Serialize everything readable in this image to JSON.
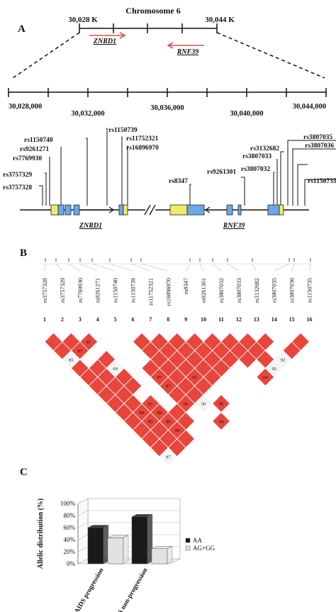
{
  "panels": {
    "a": "A",
    "b": "B",
    "c": "C"
  },
  "chromosome": {
    "title": "Chromosome 6",
    "left_label": "30,028 K",
    "right_label": "30,044 K",
    "gene1": "ZNRD1",
    "gene2": "RNF39"
  },
  "scale": {
    "ticks": [
      "30,028,000",
      "30,032,000",
      "30,036,000",
      "30,040,000",
      "30,044,000"
    ]
  },
  "snps_left": [
    "rs3757328",
    "rs3757329",
    "rs7769930",
    "rs9261271",
    "rs1150740",
    "rs1150739",
    "rs11752321",
    "rs16896970"
  ],
  "snps_right": [
    "rs8347",
    "rs9261301",
    "rs3807032",
    "rs3807033",
    "rs3132682",
    "rs3807035",
    "rs3807036",
    "rs1150735"
  ],
  "genes": {
    "gene1": "ZNRD1",
    "gene2": "RNF39"
  },
  "ld": {
    "snp_labels": [
      "rs3757328",
      "rs3757329",
      "rs7769930",
      "rs9261271",
      "rs1150740",
      "rs1150739",
      "rs11752321",
      "rs16896970",
      "rs8347",
      "rs9261301",
      "rs3807032",
      "rs3807033",
      "rs3132682",
      "rs3807035",
      "rs3807036",
      "rs1150735"
    ],
    "numbers": [
      "1",
      "2",
      "3",
      "4",
      "5",
      "6",
      "7",
      "8",
      "9",
      "10",
      "11",
      "12",
      "13",
      "14",
      "15",
      "16"
    ],
    "colors": {
      "strong": "#e8463c",
      "weak": "#ffffff",
      "mid": "#f4f4f4"
    },
    "cells": [
      {
        "i": 1,
        "j": 2,
        "v": ""
      },
      {
        "i": 2,
        "j": 3,
        "v": ""
      },
      {
        "i": 3,
        "j": 4,
        "v": "87"
      },
      {
        "i": 4,
        "j": 5,
        "v": "weak"
      },
      {
        "i": 5,
        "j": 6,
        "v": "weak"
      },
      {
        "i": 6,
        "j": 7,
        "v": ""
      },
      {
        "i": 7,
        "j": 8,
        "v": ""
      },
      {
        "i": 8,
        "j": 9,
        "v": ""
      },
      {
        "i": 9,
        "j": 10,
        "v": ""
      },
      {
        "i": 10,
        "j": 11,
        "v": ""
      },
      {
        "i": 11,
        "j": 12,
        "v": ""
      },
      {
        "i": 12,
        "j": 13,
        "v": ""
      },
      {
        "i": 13,
        "j": 14,
        "v": ""
      },
      {
        "i": 14,
        "j": 15,
        "v": "weak"
      },
      {
        "i": 15,
        "j": 16,
        "v": ""
      },
      {
        "i": 1,
        "j": 3,
        "v": ""
      },
      {
        "i": 2,
        "j": 4,
        "v": "87"
      },
      {
        "i": 3,
        "j": 5,
        "v": "weak"
      },
      {
        "i": 4,
        "j": 6,
        "v": "weak"
      },
      {
        "i": 5,
        "j": 7,
        "v": "weak"
      },
      {
        "i": 6,
        "j": 8,
        "v": ""
      },
      {
        "i": 7,
        "j": 9,
        "v": ""
      },
      {
        "i": 8,
        "j": 10,
        "v": ""
      },
      {
        "i": 9,
        "j": 11,
        "v": ""
      },
      {
        "i": 10,
        "j": 12,
        "v": ""
      },
      {
        "i": 11,
        "j": 13,
        "v": ""
      },
      {
        "i": 12,
        "j": 14,
        "v": ""
      },
      {
        "i": 13,
        "j": 15,
        "v": "weak"
      },
      {
        "i": 14,
        "j": 16,
        "v": ""
      },
      {
        "i": 1,
        "j": 4,
        "v": "85w"
      },
      {
        "i": 2,
        "j": 5,
        "v": "weak"
      },
      {
        "i": 3,
        "j": 6,
        "v": ""
      },
      {
        "i": 4,
        "j": 7,
        "v": "weak"
      },
      {
        "i": 5,
        "j": 8,
        "v": "weak"
      },
      {
        "i": 6,
        "j": 9,
        "v": ""
      },
      {
        "i": 7,
        "j": 10,
        "v": ""
      },
      {
        "i": 8,
        "j": 11,
        "v": ""
      },
      {
        "i": 9,
        "j": 12,
        "v": ""
      },
      {
        "i": 10,
        "j": 13,
        "v": ""
      },
      {
        "i": 11,
        "j": 14,
        "v": ""
      },
      {
        "i": 12,
        "j": 15,
        "v": ""
      },
      {
        "i": 13,
        "j": 16,
        "v": "92w"
      },
      {
        "i": 1,
        "j": 5,
        "v": ""
      },
      {
        "i": 2,
        "j": 6,
        "v": ""
      },
      {
        "i": 3,
        "j": 7,
        "v": "69w"
      },
      {
        "i": 4,
        "j": 8,
        "v": "weak"
      },
      {
        "i": 5,
        "j": 9,
        "v": ""
      },
      {
        "i": 6,
        "j": 10,
        "v": ""
      },
      {
        "i": 7,
        "j": 11,
        "v": ""
      },
      {
        "i": 8,
        "j": 12,
        "v": ""
      },
      {
        "i": 9,
        "j": 13,
        "v": ""
      },
      {
        "i": 10,
        "j": 14,
        "v": "weak"
      },
      {
        "i": 11,
        "j": 15,
        "v": "weak"
      },
      {
        "i": 12,
        "j": 16,
        "v": "92w"
      },
      {
        "i": 1,
        "j": 6,
        "v": ""
      },
      {
        "i": 2,
        "j": 7,
        "v": ""
      },
      {
        "i": 3,
        "j": 8,
        "v": ""
      },
      {
        "i": 4,
        "j": 9,
        "v": "weak"
      },
      {
        "i": 5,
        "j": 10,
        "v": "87"
      },
      {
        "i": 6,
        "j": 11,
        "v": ""
      },
      {
        "i": 7,
        "j": 12,
        "v": "91"
      },
      {
        "i": 8,
        "j": 13,
        "v": ""
      },
      {
        "i": 9,
        "j": 14,
        "v": "weak"
      },
      {
        "i": 10,
        "j": 15,
        "v": "weak"
      },
      {
        "i": 11,
        "j": 16,
        "v": "64"
      },
      {
        "i": 1,
        "j": 7,
        "v": ""
      },
      {
        "i": 2,
        "j": 8,
        "v": ""
      },
      {
        "i": 3,
        "j": 9,
        "v": ""
      },
      {
        "i": 4,
        "j": 10,
        "v": "weak"
      },
      {
        "i": 5,
        "j": 11,
        "v": "87"
      },
      {
        "i": 6,
        "j": 12,
        "v": ""
      },
      {
        "i": 7,
        "j": 13,
        "v": ""
      },
      {
        "i": 8,
        "j": 14,
        "v": "weak"
      },
      {
        "i": 9,
        "j": 15,
        "v": "weak"
      },
      {
        "i": 10,
        "j": 16,
        "v": "weak"
      },
      {
        "i": 1,
        "j": 8,
        "v": ""
      },
      {
        "i": 2,
        "j": 9,
        "v": ""
      },
      {
        "i": 3,
        "j": 10,
        "v": "weak"
      },
      {
        "i": 4,
        "j": 11,
        "v": "weak"
      },
      {
        "i": 5,
        "j": 12,
        "v": ""
      },
      {
        "i": 6,
        "j": 13,
        "v": ""
      },
      {
        "i": 7,
        "j": 14,
        "v": "weak"
      },
      {
        "i": 8,
        "j": 15,
        "v": "weak"
      },
      {
        "i": 9,
        "j": 16,
        "v": "weak"
      },
      {
        "i": 1,
        "j": 9,
        "v": ""
      },
      {
        "i": 2,
        "j": 10,
        "v": ""
      },
      {
        "i": 3,
        "j": 11,
        "v": "81"
      },
      {
        "i": 4,
        "j": 12,
        "v": "weak"
      },
      {
        "i": 5,
        "j": 13,
        "v": "96"
      },
      {
        "i": 6,
        "j": 14,
        "v": "50w"
      },
      {
        "i": 7,
        "j": 15,
        "v": "90"
      },
      {
        "i": 8,
        "j": 16,
        "v": "weak"
      },
      {
        "i": 1,
        "j": 10,
        "v": ""
      },
      {
        "i": 2,
        "j": 11,
        "v": "89"
      },
      {
        "i": 3,
        "j": 12,
        "v": "89"
      },
      {
        "i": 4,
        "j": 13,
        "v": ""
      },
      {
        "i": 5,
        "j": 14,
        "v": "weak"
      },
      {
        "i": 6,
        "j": 15,
        "v": "weak"
      },
      {
        "i": 7,
        "j": 16,
        "v": "weak"
      },
      {
        "i": 1,
        "j": 11,
        "v": ""
      },
      {
        "i": 2,
        "j": 12,
        "v": "85"
      },
      {
        "i": 3,
        "j": 13,
        "v": "89"
      },
      {
        "i": 4,
        "j": 14,
        "v": ""
      },
      {
        "i": 5,
        "j": 15,
        "v": "weak"
      },
      {
        "i": 6,
        "j": 16,
        "v": "94"
      },
      {
        "i": 1,
        "j": 12,
        "v": ""
      },
      {
        "i": 2,
        "j": 13,
        "v": ""
      },
      {
        "i": 3,
        "j": 14,
        "v": "99"
      },
      {
        "i": 4,
        "j": 15,
        "v": "weak"
      },
      {
        "i": 5,
        "j": 16,
        "v": "weak"
      },
      {
        "i": 1,
        "j": 13,
        "v": ""
      },
      {
        "i": 2,
        "j": 14,
        "v": ""
      },
      {
        "i": 3,
        "j": 15,
        "v": ""
      },
      {
        "i": 4,
        "j": 16,
        "v": "weak"
      },
      {
        "i": 1,
        "j": 14,
        "v": ""
      },
      {
        "i": 2,
        "j": 15,
        "v": ""
      },
      {
        "i": 3,
        "j": 16,
        "v": "weak"
      },
      {
        "i": 1,
        "j": 15,
        "v": "97w"
      },
      {
        "i": 2,
        "j": 16,
        "v": "weak"
      },
      {
        "i": 1,
        "j": 16,
        "v": "weak"
      }
    ]
  },
  "chart_data": {
    "type": "bar",
    "ylabel": "Allelic distribution (%)",
    "categories": [
      "AIDS progression",
      "AIDS non-progression"
    ],
    "ylim": [
      0,
      100
    ],
    "y_ticks": [
      "0%",
      "20%",
      "40%",
      "60%",
      "80%",
      "100%"
    ],
    "series": [
      {
        "name": "AA",
        "values": [
          60,
          78
        ],
        "color": "#1a1a1a"
      },
      {
        "name": "AG+GG",
        "values": [
          43,
          25
        ],
        "color": "#e2e2e2"
      }
    ],
    "legend": "right",
    "grid": true
  }
}
